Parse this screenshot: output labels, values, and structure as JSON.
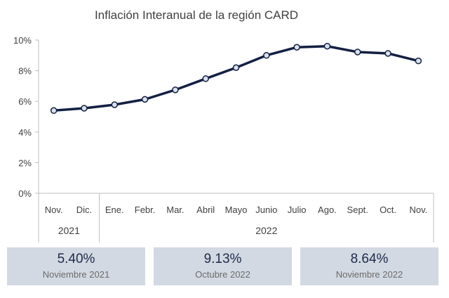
{
  "chart_data": {
    "type": "line",
    "title": "Inflación Interanual de la región CARD",
    "categories": [
      "Nov.",
      "Dic.",
      "Ene.",
      "Febr.",
      "Mar.",
      "Abril",
      "Mayo",
      "Junio",
      "Julio",
      "Ago.",
      "Sept.",
      "Oct.",
      "Nov."
    ],
    "groups": [
      {
        "label": "2021",
        "span": 2
      },
      {
        "label": "2022",
        "span": 11
      }
    ],
    "series": [
      {
        "values": [
          5.4,
          5.55,
          5.78,
          6.13,
          6.75,
          7.48,
          8.2,
          9.0,
          9.53,
          9.6,
          9.22,
          9.13,
          8.64
        ]
      }
    ],
    "ylim": [
      0,
      10
    ],
    "yticks": [
      0,
      2,
      4,
      6,
      8,
      10
    ],
    "ytick_labels": [
      "0%",
      "2%",
      "4%",
      "6%",
      "8%",
      "10%"
    ],
    "grid": false,
    "line_color": "#132043",
    "marker_fill": "#d9e1ec"
  },
  "cards": [
    {
      "value": "5.40%",
      "label": "Noviembre 2021"
    },
    {
      "value": "9.13%",
      "label": "Octubre 2022"
    },
    {
      "value": "8.64%",
      "label": "Noviembre 2022"
    }
  ],
  "colors": {
    "card_bg": "#d3d9e2",
    "card_value": "#1c2b4a"
  }
}
